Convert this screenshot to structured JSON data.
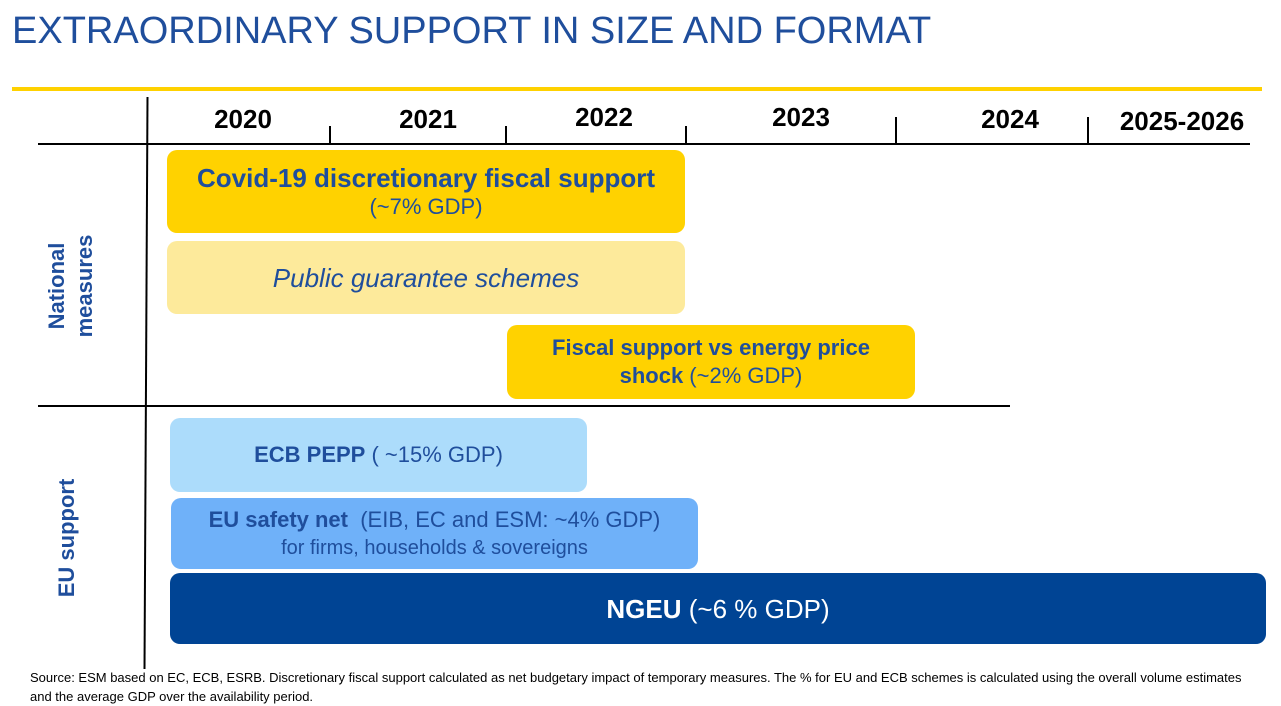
{
  "title": "EXTRAORDINARY SUPPORT IN SIZE AND FORMAT",
  "years": [
    "2020",
    "2021",
    "2022",
    "2023",
    "2024",
    "2025-2026"
  ],
  "sections": {
    "national": [
      "National",
      "measures"
    ],
    "eu": "EU support"
  },
  "bars": {
    "covid": {
      "label": "Covid-19 discretionary fiscal support",
      "value": "(~7% GDP)",
      "color": "#ffd200"
    },
    "guarantees": {
      "label": "Public guarantee schemes",
      "color": "#fdea9b"
    },
    "energy": {
      "label_line1": "Fiscal  support vs energy price",
      "label_line2_bold": "shock",
      "label_line2_value": " (~2% GDP)",
      "color": "#ffd200"
    },
    "pepp": {
      "label": "ECB PEPP",
      "value": " ( ~15% GDP)",
      "color": "#acdcfb"
    },
    "safety_net": {
      "label": "EU safety net",
      "value": "  (EIB, EC and ESM: ~4% GDP)",
      "line2": "for firms, households & sovereigns",
      "color": "#6fb1f9"
    },
    "ngeu": {
      "label": "NGEU",
      "value": " (~6 % GDP)",
      "color": "#004494"
    }
  },
  "footer": "Source: ESM based on EC, ECB, ESRB. Discretionary fiscal support calculated as net budgetary impact of temporary measures. The % for EU and ECB schemes is calculated using the overall volume estimates and the average GDP over the availability period."
}
